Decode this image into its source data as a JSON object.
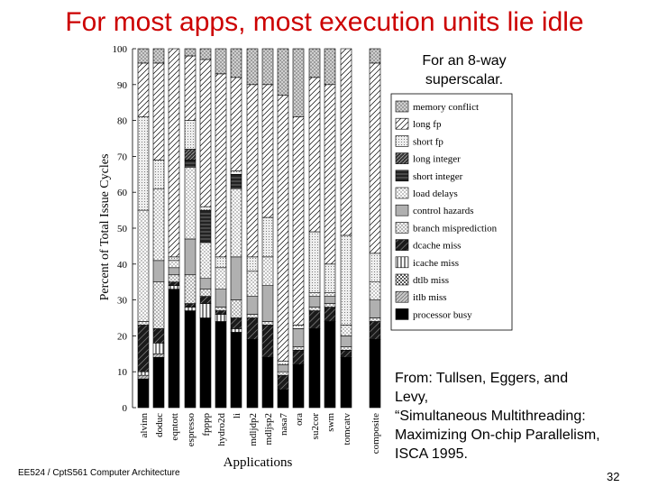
{
  "slide": {
    "title": "For most apps, most execution units lie idle",
    "note": [
      "For an 8-way",
      "superscalar."
    ],
    "citation": [
      "From: Tullsen, Eggers, and",
      "Levy,",
      "“Simultaneous Multithreading:",
      "Maximizing On-chip Parallelism,",
      "ISCA 1995."
    ],
    "footer": "EE524 / CptS561 Computer Architecture",
    "page_number": "32"
  },
  "chart_data": {
    "type": "bar",
    "stacked": true,
    "title": "",
    "xlabel": "Applications",
    "ylabel": "Percent of Total Issue Cycles",
    "ylim": [
      0,
      100
    ],
    "yticks": [
      0,
      10,
      20,
      30,
      40,
      50,
      60,
      70,
      80,
      90,
      100
    ],
    "categories": [
      "alvinn",
      "doduc",
      "eqntott",
      "espresso",
      "fpppp",
      "hydro2d",
      "li",
      "mdljdp2",
      "mdljsp2",
      "nasa7",
      "ora",
      "su2cor",
      "swm",
      "tomcatv",
      "composite"
    ],
    "legend": {
      "position": "right",
      "order_top_to_bottom": [
        "memory conflict",
        "long fp",
        "short fp",
        "long integer",
        "short integer",
        "load delays",
        "control hazards",
        "branch misprediction",
        "dcache miss",
        "icache miss",
        "dtlb miss",
        "itlb miss",
        "processor busy"
      ]
    },
    "series": [
      {
        "name": "processor busy",
        "color": "#000000",
        "values": [
          8,
          14,
          33,
          27,
          25,
          24,
          21,
          19,
          14,
          5,
          12,
          22,
          24,
          14,
          19
        ]
      },
      {
        "name": "itlb miss",
        "color": "#c8c8c8",
        "values": [
          1,
          1,
          0,
          0,
          0,
          0,
          0,
          0,
          0,
          0,
          0,
          0,
          0,
          0,
          0
        ]
      },
      {
        "name": "dtlb miss",
        "color": "#ffffff",
        "values": [
          0,
          0,
          0,
          0,
          0,
          0,
          0,
          0,
          0,
          0,
          0,
          0,
          0,
          0,
          0
        ]
      },
      {
        "name": "icache miss",
        "color": "#ffffff",
        "values": [
          1,
          3,
          1,
          1,
          4,
          2,
          1,
          0,
          0,
          0,
          0,
          0,
          0,
          0,
          0
        ]
      },
      {
        "name": "dcache miss",
        "color": "#444444",
        "values": [
          13,
          4,
          1,
          1,
          2,
          1,
          3,
          6,
          9,
          4,
          4,
          5,
          4,
          2,
          5
        ]
      },
      {
        "name": "branch misprediction",
        "color": "#eeeeee",
        "values": [
          1,
          13,
          2,
          8,
          2,
          1,
          5,
          1,
          1,
          1,
          1,
          1,
          1,
          1,
          1
        ]
      },
      {
        "name": "control hazards",
        "color": "#b0b0b0",
        "values": [
          0,
          6,
          2,
          10,
          3,
          5,
          12,
          5,
          10,
          2,
          5,
          3,
          2,
          3,
          5
        ]
      },
      {
        "name": "load delays",
        "color": "#ffffff",
        "values": [
          31,
          20,
          2,
          20,
          10,
          6,
          19,
          7,
          8,
          0,
          0,
          1,
          1,
          3,
          5
        ]
      },
      {
        "name": "short integer",
        "color": "#222222",
        "values": [
          0,
          0,
          0,
          2,
          9,
          0,
          4,
          0,
          0,
          0,
          0,
          0,
          0,
          0,
          0
        ]
      },
      {
        "name": "long integer",
        "color": "#333333",
        "values": [
          0,
          0,
          0,
          3,
          0,
          0,
          0,
          0,
          0,
          0,
          0,
          0,
          0,
          0,
          0
        ]
      },
      {
        "name": "short fp",
        "color": "#eeeeee",
        "values": [
          26,
          8,
          1,
          8,
          1,
          3,
          1,
          4,
          11,
          1,
          1,
          17,
          8,
          25,
          8
        ]
      },
      {
        "name": "long fp",
        "color": "#ffffff",
        "values": [
          15,
          27,
          58,
          18,
          41,
          51,
          26,
          48,
          37,
          74,
          58,
          43,
          50,
          52,
          53
        ]
      },
      {
        "name": "memory conflict",
        "color": "#cfcfcf",
        "values": [
          4,
          4,
          0,
          2,
          3,
          7,
          8,
          10,
          10,
          13,
          19,
          8,
          10,
          0,
          4
        ]
      }
    ]
  }
}
